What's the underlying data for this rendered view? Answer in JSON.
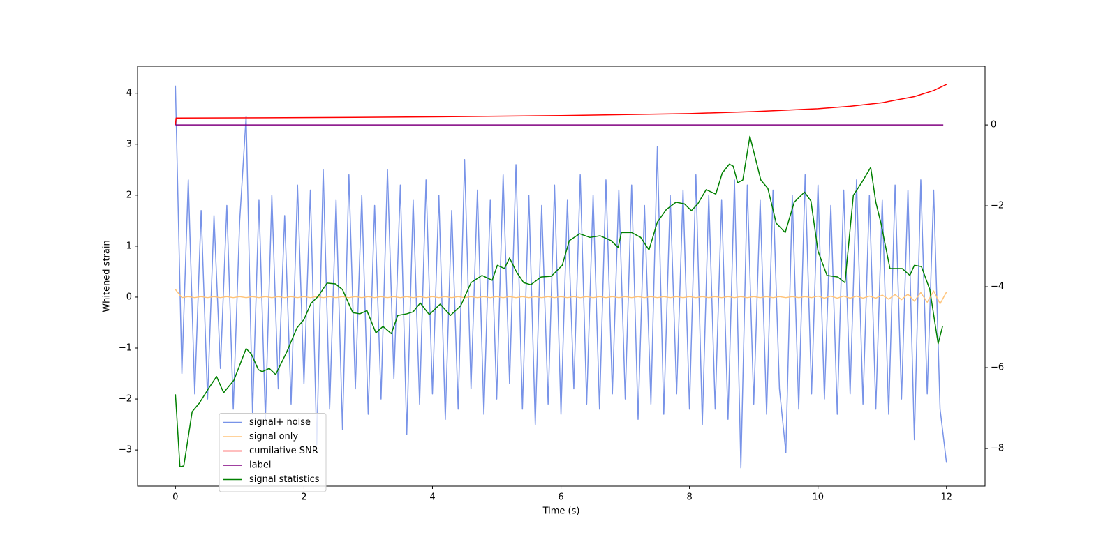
{
  "chart_data": {
    "type": "line",
    "xlabel": "Time (s)",
    "ylabel": "Whitened strain",
    "xlim": [
      -0.59,
      12.6
    ],
    "ylim": [
      -3.71,
      4.53
    ],
    "y2lim": [
      -8.93,
      1.45
    ],
    "xticks": [
      0,
      2,
      4,
      6,
      8,
      10,
      12
    ],
    "yticks": [
      {
        "value": -3,
        "label": "−3"
      },
      {
        "value": -2,
        "label": "−2"
      },
      {
        "value": -1,
        "label": "−1"
      },
      0,
      1,
      2,
      3,
      4
    ],
    "y2ticks": [
      {
        "value": -8,
        "label": "−8"
      },
      {
        "value": -6,
        "label": "−6"
      },
      {
        "value": -4,
        "label": "−4"
      },
      {
        "value": -2,
        "label": "−2"
      },
      0
    ],
    "legend": "lower left",
    "x": [
      0,
      0.1,
      0.2,
      0.3,
      0.4,
      0.5,
      0.6,
      0.7,
      0.8,
      0.9,
      1,
      1.1,
      1.2,
      1.3,
      1.4,
      1.5,
      1.6,
      1.7,
      1.8,
      1.9,
      2,
      2.1,
      2.2,
      2.3,
      2.4,
      2.5,
      2.6,
      2.7,
      2.8,
      2.9,
      3,
      3.1,
      3.2,
      3.3,
      3.4,
      3.5,
      3.6,
      3.7,
      3.8,
      3.9,
      4,
      4.1,
      4.2,
      4.3,
      4.4,
      4.5,
      4.6,
      4.7,
      4.8,
      4.9,
      5,
      5.1,
      5.2,
      5.3,
      5.4,
      5.5,
      5.6,
      5.7,
      5.8,
      5.9,
      6,
      6.1,
      6.2,
      6.3,
      6.4,
      6.5,
      6.6,
      6.7,
      6.8,
      6.9,
      7,
      7.1,
      7.2,
      7.3,
      7.4,
      7.5,
      7.6,
      7.7,
      7.8,
      7.9,
      8,
      8.1,
      8.2,
      8.3,
      8.4,
      8.5,
      8.6,
      8.7,
      8.8,
      8.9,
      9,
      9.1,
      9.2,
      9.3,
      9.4,
      9.5,
      9.6,
      9.7,
      9.8,
      9.9,
      10,
      10.1,
      10.2,
      10.3,
      10.4,
      10.5,
      10.6,
      10.7,
      10.8,
      10.9,
      11,
      11.1,
      11.2,
      11.3,
      11.4,
      11.5,
      11.6,
      11.7,
      11.8,
      11.9,
      12
    ],
    "series": [
      {
        "name": "signal+ noise",
        "color": "#7893e8",
        "axis": "y",
        "values": [
          4.15,
          -1.5,
          2.3,
          -1.9,
          1.7,
          -2.0,
          1.6,
          -1.4,
          1.8,
          -2.2,
          1.5,
          3.55,
          -2.3,
          1.9,
          -2.4,
          2.0,
          -1.8,
          1.6,
          -2.1,
          2.2,
          -1.7,
          2.1,
          -2.9,
          2.5,
          -2.2,
          1.9,
          -2.6,
          2.4,
          -1.8,
          2.0,
          -2.3,
          1.8,
          -2.0,
          2.5,
          -1.6,
          2.2,
          -2.7,
          1.9,
          -2.1,
          2.3,
          -1.9,
          2.0,
          -2.4,
          1.7,
          -2.2,
          2.7,
          -1.8,
          2.1,
          -2.3,
          1.9,
          -2.0,
          2.4,
          -1.7,
          2.6,
          -2.2,
          2.0,
          -2.5,
          1.8,
          -2.1,
          2.2,
          -2.3,
          1.9,
          -1.8,
          2.4,
          -2.1,
          2.0,
          -2.2,
          2.3,
          -1.9,
          2.1,
          -2.0,
          2.2,
          -2.4,
          1.8,
          -2.1,
          2.95,
          -2.3,
          2.0,
          -1.9,
          2.1,
          -2.2,
          2.4,
          -2.5,
          2.0,
          -2.2,
          1.9,
          -2.4,
          2.3,
          -3.35,
          2.2,
          -2.1,
          1.9,
          -2.3,
          2.1,
          -1.8,
          -3.05,
          2.0,
          -2.2,
          2.4,
          -1.9,
          2.2,
          -2.0,
          1.8,
          -2.3,
          2.1,
          -1.9,
          2.3,
          -2.1,
          2.0,
          -2.2,
          1.9,
          -2.3,
          2.2,
          -2.0,
          2.1,
          -2.8,
          2.3,
          -1.9,
          2.1,
          -2.2,
          -3.25
        ]
      },
      {
        "name": "signal only",
        "color": "#ffc47a",
        "axis": "y",
        "values": [
          0.15,
          -0.01,
          0.01,
          -0.01,
          0.01,
          -0.01,
          0.01,
          -0.01,
          0.01,
          -0.01,
          0.01,
          -0.01,
          0.01,
          -0.01,
          0.01,
          -0.01,
          0.01,
          -0.01,
          0.01,
          -0.01,
          0.01,
          -0.01,
          0.01,
          -0.01,
          0.01,
          -0.01,
          0.01,
          -0.01,
          0.01,
          -0.01,
          0.01,
          -0.01,
          0.01,
          -0.01,
          0.01,
          -0.01,
          0.01,
          -0.01,
          0.01,
          -0.01,
          0.01,
          -0.01,
          0.01,
          -0.01,
          0.01,
          -0.01,
          0.01,
          -0.01,
          0.01,
          -0.01,
          0.01,
          -0.01,
          0.01,
          -0.01,
          0.01,
          -0.01,
          0.01,
          -0.01,
          0.01,
          -0.01,
          0.01,
          -0.01,
          0.01,
          -0.01,
          0.01,
          -0.01,
          0.01,
          -0.01,
          0.01,
          -0.01,
          0.01,
          -0.01,
          0.01,
          -0.01,
          0.01,
          -0.01,
          0.01,
          -0.01,
          0.01,
          -0.01,
          0.01,
          -0.01,
          0.01,
          -0.01,
          0.01,
          -0.01,
          0.01,
          -0.01,
          0.01,
          -0.01,
          0.01,
          -0.01,
          0.01,
          -0.01,
          0.01,
          -0.01,
          0.01,
          -0.01,
          0.01,
          -0.01,
          0.02,
          -0.02,
          0.02,
          -0.02,
          0.02,
          -0.02,
          0.02,
          -0.02,
          0.02,
          -0.02,
          0.04,
          -0.04,
          0.05,
          -0.05,
          0.06,
          -0.08,
          0.09,
          -0.1,
          0.12,
          -0.13,
          0.1
        ]
      },
      {
        "name": "cumilative SNR",
        "color": "#ff0000",
        "axis": "y2",
        "x": [
          0,
          0.01,
          2,
          4,
          6,
          8,
          9,
          10,
          10.5,
          11,
          11.5,
          11.8,
          12
        ],
        "values": [
          0.0,
          0.17,
          0.18,
          0.2,
          0.23,
          0.28,
          0.33,
          0.4,
          0.46,
          0.55,
          0.7,
          0.85,
          1.0
        ]
      },
      {
        "name": "label",
        "color": "#800080",
        "axis": "y2",
        "x": [
          0,
          11.95
        ],
        "values": [
          0,
          0
        ]
      },
      {
        "name": "signal statistics",
        "color": "#008000",
        "axis": "y2",
        "x": [
          0,
          0.07,
          0.13,
          0.26,
          0.37,
          0.53,
          0.64,
          0.75,
          0.91,
          1.1,
          1.18,
          1.29,
          1.35,
          1.46,
          1.56,
          1.73,
          1.89,
          2.0,
          2.11,
          2.22,
          2.36,
          2.49,
          2.6,
          2.76,
          2.87,
          2.98,
          3.12,
          3.23,
          3.36,
          3.46,
          3.6,
          3.7,
          3.81,
          3.95,
          4.12,
          4.28,
          4.44,
          4.6,
          4.77,
          4.93,
          5.01,
          5.12,
          5.2,
          5.31,
          5.42,
          5.53,
          5.69,
          5.85,
          6.02,
          6.13,
          6.29,
          6.45,
          6.61,
          6.78,
          6.89,
          6.94,
          7.1,
          7.24,
          7.37,
          7.5,
          7.64,
          7.79,
          7.92,
          8.03,
          8.13,
          8.26,
          8.41,
          8.51,
          8.62,
          8.68,
          8.75,
          8.83,
          8.94,
          9.11,
          9.22,
          9.35,
          9.49,
          9.63,
          9.79,
          9.89,
          10.0,
          10.14,
          10.31,
          10.42,
          10.55,
          10.69,
          10.82,
          10.9,
          10.98,
          11.12,
          11.31,
          11.43,
          11.5,
          11.61,
          11.74,
          11.87,
          11.94
        ],
        "values": [
          -6.66,
          -8.45,
          -8.43,
          -7.09,
          -6.88,
          -6.48,
          -6.22,
          -6.62,
          -6.31,
          -5.53,
          -5.66,
          -6.05,
          -6.1,
          -6.02,
          -6.17,
          -5.62,
          -5.02,
          -4.81,
          -4.41,
          -4.24,
          -3.91,
          -3.93,
          -4.07,
          -4.64,
          -4.67,
          -4.59,
          -5.14,
          -4.98,
          -5.16,
          -4.71,
          -4.67,
          -4.62,
          -4.4,
          -4.69,
          -4.43,
          -4.71,
          -4.47,
          -3.9,
          -3.72,
          -3.84,
          -3.47,
          -3.55,
          -3.29,
          -3.64,
          -3.9,
          -3.95,
          -3.76,
          -3.74,
          -3.47,
          -2.86,
          -2.69,
          -2.78,
          -2.74,
          -2.86,
          -3.03,
          -2.66,
          -2.66,
          -2.78,
          -3.09,
          -2.4,
          -2.09,
          -1.91,
          -1.95,
          -2.12,
          -1.95,
          -1.6,
          -1.71,
          -1.19,
          -0.97,
          -1.02,
          -1.43,
          -1.36,
          -0.28,
          -1.36,
          -1.57,
          -2.43,
          -2.66,
          -1.91,
          -1.66,
          -1.88,
          -3.12,
          -3.72,
          -3.76,
          -3.9,
          -1.74,
          -1.4,
          -1.05,
          -1.91,
          -2.43,
          -3.55,
          -3.55,
          -3.72,
          -3.47,
          -3.5,
          -4.07,
          -5.41,
          -4.97
        ]
      }
    ]
  }
}
